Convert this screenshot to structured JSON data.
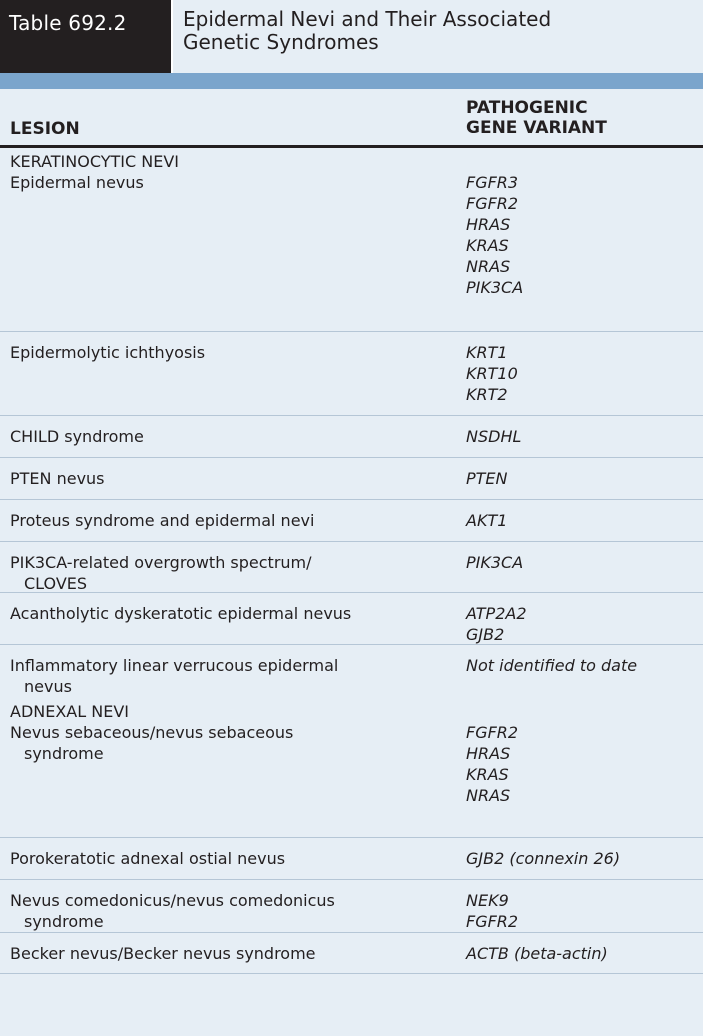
{
  "table": {
    "number": "Table 692.2",
    "title_line1": "Epidermal Nevi and Their Associated",
    "title_line2": "Genetic Syndromes",
    "col_lesion": "LESION",
    "col_gene_line1": "PATHOGENIC",
    "col_gene_line2": "GENE VARIANT"
  },
  "sections": [
    {
      "heading": "KERATINOCYTIC NEVI",
      "rows": [
        {
          "lesion": [
            "Epidermal nevus"
          ],
          "genes": [
            "FGFR3",
            "FGFR2",
            "HRAS",
            "KRAS",
            "NRAS",
            "PIK3CA"
          ]
        },
        {
          "lesion": [
            "Epidermolytic ichthyosis"
          ],
          "genes": [
            "KRT1",
            "KRT10",
            "KRT2"
          ]
        },
        {
          "lesion": [
            "CHILD syndrome"
          ],
          "genes": [
            "NSDHL"
          ]
        },
        {
          "lesion": [
            "PTEN nevus"
          ],
          "genes": [
            "PTEN"
          ]
        },
        {
          "lesion": [
            "Proteus syndrome and epidermal nevi"
          ],
          "genes": [
            "AKT1"
          ]
        },
        {
          "lesion": [
            "PIK3CA-related overgrowth spectrum/",
            "CLOVES"
          ],
          "genes": [
            "PIK3CA"
          ]
        },
        {
          "lesion": [
            "Acantholytic dyskeratotic epidermal nevus"
          ],
          "genes": [
            "ATP2A2",
            "GJB2"
          ]
        },
        {
          "lesion": [
            "Inflammatory linear verrucous epidermal",
            "nevus"
          ],
          "genes": [
            "Not identified to date"
          ]
        }
      ]
    },
    {
      "heading": "ADNEXAL NEVI",
      "rows": [
        {
          "lesion": [
            "Nevus sebaceous/nevus sebaceous",
            "syndrome"
          ],
          "genes": [
            "FGFR2",
            "HRAS",
            "KRAS",
            "NRAS"
          ]
        },
        {
          "lesion": [
            "Porokeratotic adnexal ostial nevus"
          ],
          "genes": [
            "GJB2 (connexin 26)"
          ]
        },
        {
          "lesion": [
            "Nevus comedonicus/nevus comedonicus",
            "syndrome"
          ],
          "genes": [
            "NEK9",
            "FGFR2"
          ]
        },
        {
          "lesion": [
            "Becker nevus/Becker nevus syndrome"
          ],
          "genes": [
            "ACTB (beta-actin)"
          ]
        }
      ]
    }
  ]
}
